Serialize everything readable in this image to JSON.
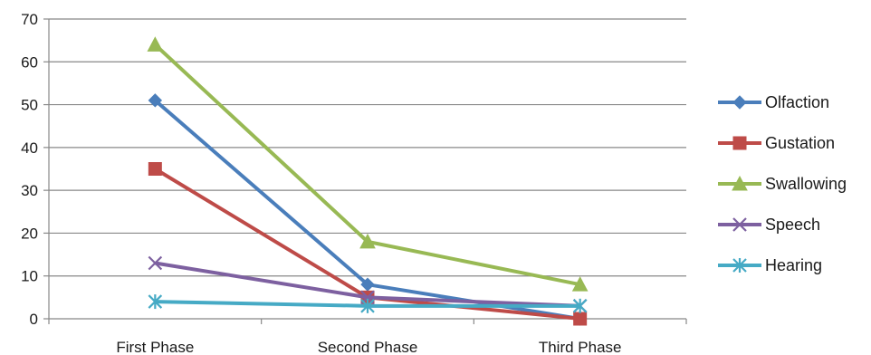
{
  "chart_data": {
    "type": "line",
    "categories": [
      "First Phase",
      "Second Phase",
      "Third Phase"
    ],
    "ylim": [
      0,
      70
    ],
    "yticks": [
      0,
      10,
      20,
      30,
      40,
      50,
      60,
      70
    ],
    "grid": true,
    "legend_position": "right",
    "series": [
      {
        "name": "Olfaction",
        "values": [
          51,
          8,
          0
        ],
        "color": "#4a7ebb",
        "marker": "diamond"
      },
      {
        "name": "Gustation",
        "values": [
          35,
          5,
          0
        ],
        "color": "#be4b48",
        "marker": "square"
      },
      {
        "name": "Swallowing",
        "values": [
          64,
          18,
          8
        ],
        "color": "#98b954",
        "marker": "triangle"
      },
      {
        "name": "Speech",
        "values": [
          13,
          5,
          3
        ],
        "color": "#7d60a0",
        "marker": "x"
      },
      {
        "name": "Hearing",
        "values": [
          4,
          3,
          3
        ],
        "color": "#46aac5",
        "marker": "asterisk"
      }
    ]
  }
}
